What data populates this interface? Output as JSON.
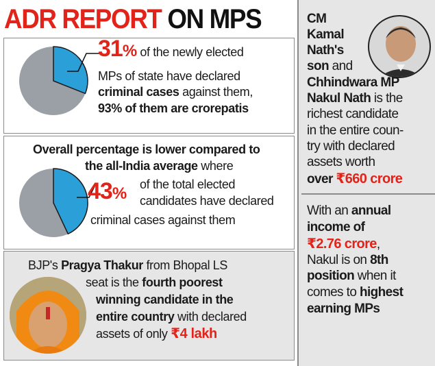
{
  "title": {
    "part1": "ADR REPORT",
    "part2": "ON MPS"
  },
  "box1": {
    "percent": "31",
    "percent_sign": "%",
    "line1": "of the newly elected",
    "line2": "MPs of state have declared",
    "line3_bold": "criminal cases",
    "line3_rest": " against them,",
    "line4": "93% of them are crorepatis",
    "pie_fraction": 0.31
  },
  "box2": {
    "line1": "Overall percentage is lower compared to",
    "line2_bold": "the all-India average",
    "line2_rest": " where",
    "percent": "43",
    "percent_sign": "%",
    "line3": "of the total elected",
    "line4": "candidates have declared",
    "line5": "criminal cases against them",
    "pie_fraction": 0.43
  },
  "box3": {
    "line1_a": "BJP's ",
    "line1_b": "Pragya Thakur",
    "line1_c": " from Bhopal LS",
    "line2_a": "seat is the ",
    "line2_b": "fourth poorest",
    "line3": "winning candidate in the",
    "line4_bold": "entire country",
    "line4_rest": " with declared",
    "line5_a": "assets of only ",
    "line5_b": "₹4 lakh"
  },
  "right": {
    "l1": "CM",
    "l2": "Kamal",
    "l3": "Nath's",
    "l4_bold": "son",
    "l4_rest": " and",
    "l5": "Chhindwara MP",
    "l6_bold": "Nakul Nath",
    "l6_rest": " is the",
    "l7": "richest candidate",
    "l8": "in the entire coun-",
    "l9": "try with declared",
    "l10": "assets worth",
    "l11_bold": "over ",
    "l11_red": "₹660 crore",
    "m1_a": "With an ",
    "m1_b": "annual",
    "m2": "income of",
    "m3": "₹2.76 crore",
    "m3_rest": ",",
    "m4_a": "Nakul is on ",
    "m4_b": "8th",
    "m5_bold": "position",
    "m5_rest": " when it",
    "m6_a": "comes to ",
    "m6_b": "highest",
    "m7": "earning MPs"
  },
  "colors": {
    "accent_red": "#e2231a",
    "pie_blue": "#2b9fd8",
    "pie_gray": "#9aa0a6",
    "panel_gray": "#e6e6e6"
  }
}
